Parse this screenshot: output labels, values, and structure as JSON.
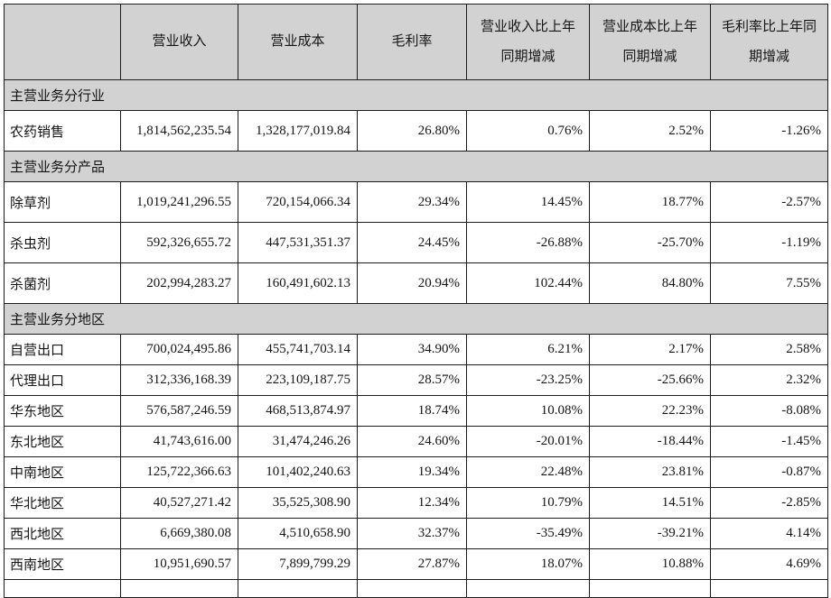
{
  "colors": {
    "header_bg": "#d2d2d2",
    "border": "#1c1c1c",
    "text": "#141414"
  },
  "headers": [
    {
      "lines": [
        "营业收入"
      ]
    },
    {
      "lines": [
        "营业成本"
      ]
    },
    {
      "lines": [
        "毛利率"
      ]
    },
    {
      "lines": [
        "营业收入比上年",
        "同期增减"
      ]
    },
    {
      "lines": [
        "营业成本比上年",
        "同期增减"
      ]
    },
    {
      "lines": [
        "毛利率比上年同",
        "期增减"
      ]
    }
  ],
  "rows": [
    {
      "type": "section",
      "title": "主营业务分行业"
    },
    {
      "type": "data",
      "label": "农药销售",
      "values": [
        "1,814,562,235.54",
        "1,328,177,019.84",
        "26.80%",
        "0.76%",
        "2.52%",
        "-1.26%"
      ]
    },
    {
      "type": "section",
      "title": "主营业务分产品"
    },
    {
      "type": "data",
      "label": "除草剂",
      "values": [
        "1,019,241,296.55",
        "720,154,066.34",
        "29.34%",
        "14.45%",
        "18.77%",
        "-2.57%"
      ]
    },
    {
      "type": "data",
      "label": "杀虫剂",
      "values": [
        "592,326,655.72",
        "447,531,351.37",
        "24.45%",
        "-26.88%",
        "-25.70%",
        "-1.19%"
      ]
    },
    {
      "type": "data",
      "label": "杀菌剂",
      "values": [
        "202,994,283.27",
        "160,491,602.13",
        "20.94%",
        "102.44%",
        "84.80%",
        "7.55%"
      ]
    },
    {
      "type": "section",
      "title": "主营业务分地区"
    },
    {
      "type": "data",
      "label": "自营出口",
      "values": [
        "700,024,495.86",
        "455,741,703.14",
        "34.90%",
        "6.21%",
        "2.17%",
        "2.58%"
      ]
    },
    {
      "type": "data",
      "label": "代理出口",
      "values": [
        "312,336,168.39",
        "223,109,187.75",
        "28.57%",
        "-23.25%",
        "-25.66%",
        "2.32%"
      ]
    },
    {
      "type": "data",
      "label": "华东地区",
      "values": [
        "576,587,246.59",
        "468,513,874.97",
        "18.74%",
        "10.08%",
        "22.23%",
        "-8.08%"
      ]
    },
    {
      "type": "data",
      "label": "东北地区",
      "values": [
        "41,743,616.00",
        "31,474,246.26",
        "24.60%",
        "-20.01%",
        "-18.44%",
        "-1.45%"
      ]
    },
    {
      "type": "data",
      "label": "中南地区",
      "values": [
        "125,722,366.63",
        "101,402,240.63",
        "19.34%",
        "22.48%",
        "23.81%",
        "-0.87%"
      ]
    },
    {
      "type": "data",
      "label": "华北地区",
      "values": [
        "40,527,271.42",
        "35,525,308.90",
        "12.34%",
        "10.79%",
        "14.51%",
        "-2.85%"
      ]
    },
    {
      "type": "data",
      "label": "西北地区",
      "values": [
        "6,669,380.08",
        "4,510,658.90",
        "32.37%",
        "-35.49%",
        "-39.21%",
        "4.14%"
      ]
    },
    {
      "type": "data",
      "label": "西南地区",
      "values": [
        "10,951,690.57",
        "7,899,799.29",
        "27.87%",
        "18.07%",
        "10.88%",
        "4.69%"
      ]
    }
  ]
}
